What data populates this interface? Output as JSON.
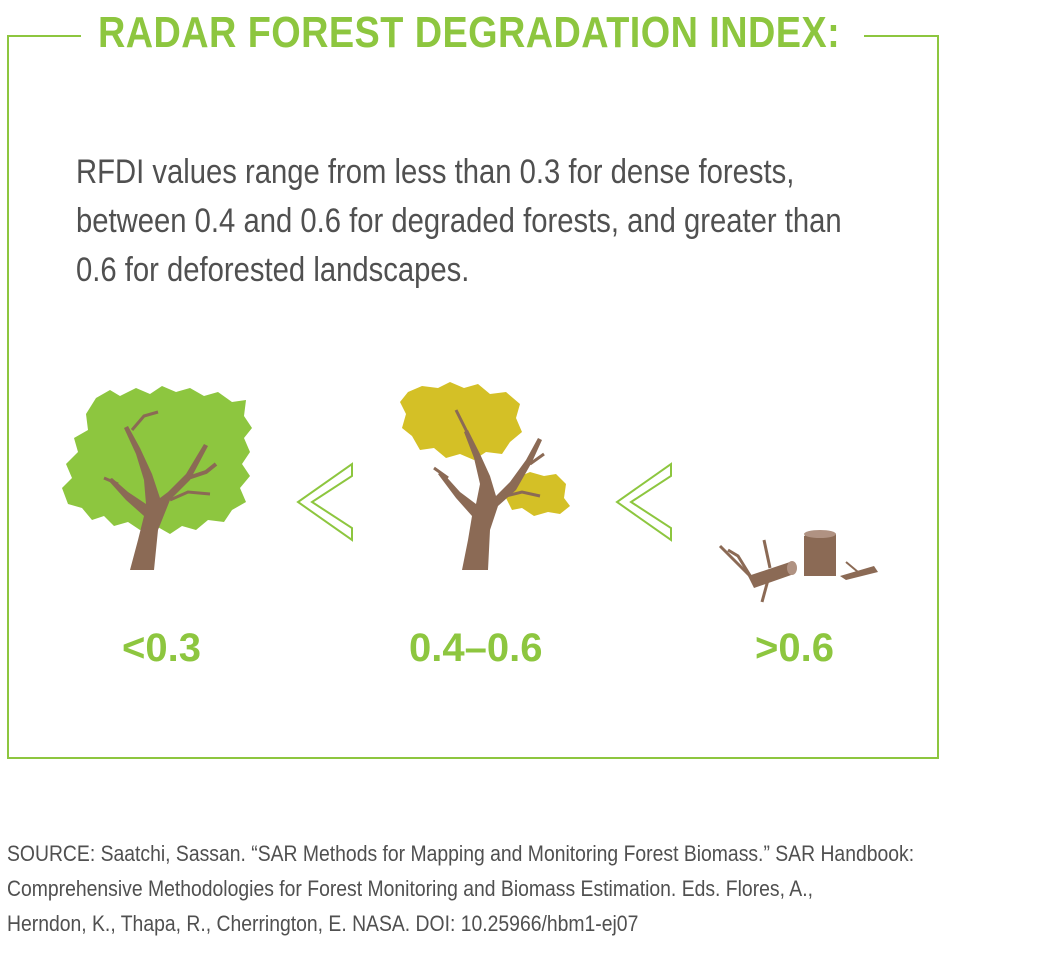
{
  "title": "RADAR FOREST DEGRADATION INDEX:",
  "description_lines": [
    "RFDI values range from less than 0.3 for dense forests,",
    "between 0.4 and 0.6 for degraded forests, and greater than",
    "0.6 for deforested landscapes."
  ],
  "categories": [
    {
      "label": "<0.3",
      "icon": "dense-tree-icon",
      "color": "#8dc63f"
    },
    {
      "label": "0.4–0.6",
      "icon": "degraded-tree-icon",
      "color": "#d4c026"
    },
    {
      "label": ">0.6",
      "icon": "cut-stump-icon",
      "color": "#8b6a55"
    }
  ],
  "comparators": [
    "less-than-icon",
    "less-than-icon"
  ],
  "source_lines": [
    "SOURCE: Saatchi, Sassan. “SAR Methods for Mapping and Monitoring Forest Biomass.” SAR Handbook:",
    "Comprehensive Methodologies for Forest Monitoring and Biomass Estimation. Eds. Flores, A.,",
    "Herndon, K., Thapa, R., Cherrington, E. NASA. DOI: 10.25966/hbm1-ej07"
  ],
  "colors": {
    "accent": "#8dc63f",
    "text": "#505050",
    "trunk": "#8b6a55",
    "yellow_foliage": "#d4c026"
  }
}
